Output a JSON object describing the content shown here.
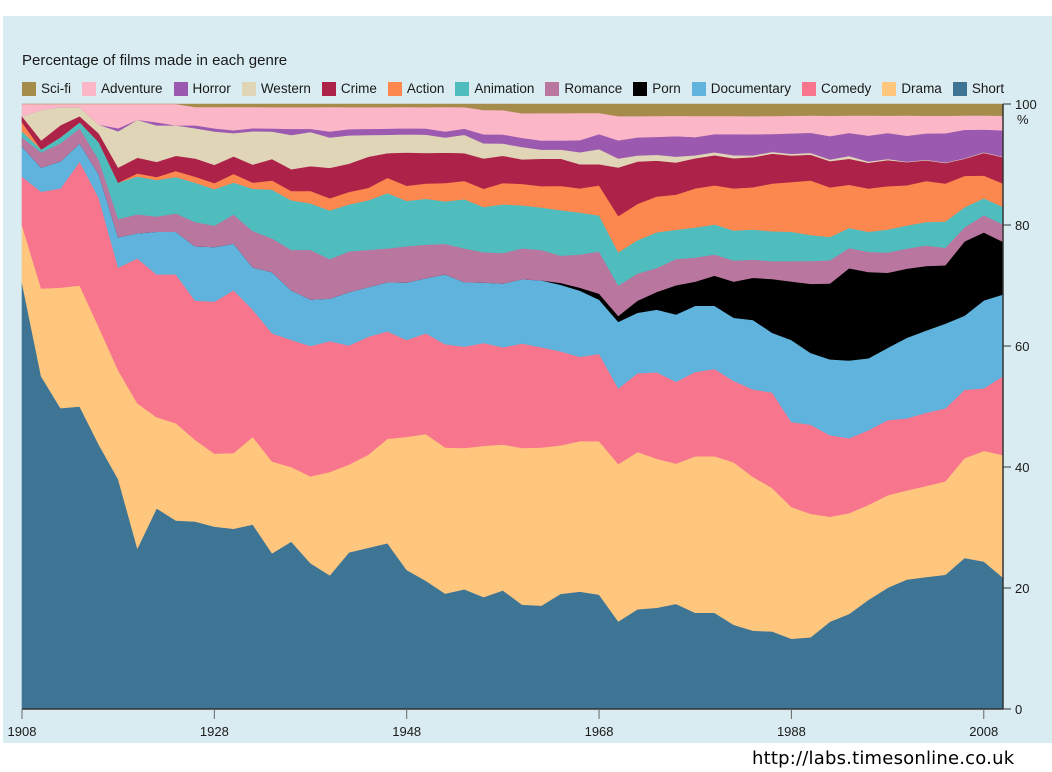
{
  "page": {
    "source_url": "http://labs.timesonline.co.uk"
  },
  "chart_data": {
    "type": "area",
    "stacked": true,
    "normalized_percent": true,
    "title": "Percentage of films made in each genre",
    "xlabel": "",
    "ylabel": "%",
    "xlim": [
      1908,
      2010
    ],
    "ylim": [
      0,
      100
    ],
    "x_ticks": [
      1908,
      1928,
      1948,
      1968,
      1988,
      2008
    ],
    "y_ticks": [
      0,
      20,
      40,
      60,
      80,
      100
    ],
    "y_tick_unit_label": "%",
    "grid": false,
    "legend_position": "top",
    "legend": [
      "Sci-fi",
      "Adventure",
      "Horror",
      "Western",
      "Crime",
      "Action",
      "Animation",
      "Romance",
      "Porn",
      "Documentary",
      "Comedy",
      "Drama",
      "Short"
    ],
    "stack_order_bottom_to_top": [
      "Short",
      "Drama",
      "Comedy",
      "Documentary",
      "Porn",
      "Romance",
      "Animation",
      "Action",
      "Crime",
      "Western",
      "Horror",
      "Adventure",
      "Sci-fi"
    ],
    "colors": {
      "Sci-fi": "#a58c4b",
      "Adventure": "#fbb7c8",
      "Horror": "#9b59b0",
      "Western": "#e0d5b7",
      "Crime": "#ad2249",
      "Action": "#fc874f",
      "Animation": "#4fbdbd",
      "Romance": "#b9769f",
      "Porn": "#000000",
      "Documentary": "#5fb3dc",
      "Comedy": "#f7768e",
      "Drama": "#ffc67e",
      "Short": "#3e7594"
    },
    "x": [
      1908,
      1910,
      1912,
      1914,
      1916,
      1918,
      1920,
      1922,
      1924,
      1926,
      1928,
      1930,
      1932,
      1934,
      1936,
      1938,
      1940,
      1942,
      1944,
      1946,
      1948,
      1950,
      1952,
      1954,
      1956,
      1958,
      1960,
      1962,
      1964,
      1966,
      1968,
      1970,
      1972,
      1974,
      1976,
      1978,
      1980,
      1982,
      1984,
      1986,
      1988,
      1990,
      1992,
      1994,
      1996,
      1998,
      2000,
      2002,
      2004,
      2006,
      2008,
      2010
    ],
    "series": [
      {
        "name": "Short",
        "values": [
          70.5,
          55,
          50,
          50,
          45,
          38,
          25.5,
          33,
          31,
          31,
          30,
          31,
          30.5,
          25.5,
          27,
          23.5,
          22,
          25,
          26,
          27,
          23,
          21,
          19,
          19.5,
          18.5,
          19.5,
          17,
          17,
          19,
          19.5,
          19,
          14.5,
          16.5,
          17,
          18,
          16,
          16,
          14,
          13,
          13,
          12,
          12.5,
          15,
          16.5,
          19,
          21,
          22.5,
          22.5,
          23,
          26.5,
          26,
          22.5
        ]
      },
      {
        "name": "Drama",
        "values": [
          9.5,
          14.5,
          20,
          20,
          20,
          18,
          23,
          15,
          16,
          13.5,
          12,
          13,
          14.5,
          15,
          12,
          14,
          17,
          14,
          15,
          17,
          22,
          24,
          24,
          23,
          25,
          24,
          25.5,
          26,
          24.5,
          25,
          25.5,
          26,
          26,
          25,
          24,
          26,
          26,
          27,
          25.5,
          24,
          22.5,
          21.5,
          18,
          17.5,
          16.5,
          16,
          15.5,
          15.5,
          16,
          17.5,
          19.5,
          21
        ]
      },
      {
        "name": "Comedy",
        "values": [
          8,
          16,
          16.5,
          20.5,
          22,
          17,
          23,
          23.5,
          24.5,
          23,
          25,
          28,
          21,
          21,
          20.5,
          21,
          21.5,
          19,
          19,
          17.5,
          16,
          16.5,
          17,
          16.5,
          17,
          16,
          17,
          16.5,
          15.5,
          14,
          14.5,
          12.5,
          13,
          14.5,
          14,
          14,
          14.5,
          13.5,
          14.5,
          16,
          14.5,
          15.5,
          14,
          13,
          13,
          13,
          12.5,
          12.5,
          12.5,
          12,
          11,
          13.5
        ]
      },
      {
        "name": "Documentary",
        "values": [
          5,
          4,
          4.5,
          3,
          4,
          5,
          4,
          7,
          7,
          9,
          9,
          8,
          7,
          10,
          8,
          7.5,
          7,
          8.5,
          8,
          8,
          9.5,
          9,
          11.5,
          10.5,
          10,
          10.5,
          10.5,
          11,
          11,
          11,
          9,
          11,
          10,
          10.5,
          11.5,
          11,
          10.5,
          10.5,
          11.5,
          10,
          14,
          12.5,
          13,
          13.5,
          12.5,
          12.5,
          14,
          14,
          14.5,
          13,
          15.5,
          14
        ]
      },
      {
        "name": "Porn",
        "values": [
          0,
          0,
          0,
          0,
          0,
          0,
          0,
          0,
          0,
          0,
          0,
          0,
          0,
          0,
          0,
          0,
          0,
          0,
          0,
          0,
          0,
          0,
          0,
          0,
          0,
          0,
          0,
          0,
          0.3,
          0.5,
          1,
          1,
          2,
          3,
          5,
          4,
          5,
          6,
          7,
          9,
          10,
          12,
          13,
          16,
          15,
          13,
          12,
          11,
          10,
          13,
          12,
          9
        ]
      },
      {
        "name": "Romance",
        "values": [
          1.5,
          2.5,
          3,
          2.5,
          2.5,
          3,
          3,
          2.5,
          3,
          4,
          3.5,
          5,
          6,
          5.5,
          6.5,
          8,
          6.5,
          6.5,
          6,
          5.5,
          6,
          5.5,
          5,
          5.5,
          5,
          5,
          5,
          5,
          4.5,
          5.5,
          7,
          5,
          4.5,
          4,
          4.5,
          4,
          3.5,
          3.5,
          3,
          3,
          3.5,
          4,
          4,
          3.5,
          3.5,
          3.5,
          3.5,
          3.5,
          3,
          2.5,
          3,
          3
        ]
      },
      {
        "name": "Animation",
        "values": [
          1,
          0.5,
          1,
          1,
          3,
          6,
          6,
          6,
          6,
          6.5,
          6,
          5.5,
          7,
          8,
          8,
          7.5,
          8,
          7.5,
          8,
          9,
          7.5,
          7.5,
          7,
          8,
          7.5,
          8,
          7,
          7,
          7.5,
          7,
          6,
          5.5,
          5.5,
          6,
          5,
          5,
          5,
          5,
          5,
          5,
          5,
          4.5,
          4,
          3.5,
          3.5,
          4,
          4,
          4,
          4.5,
          3.5,
          3,
          3
        ]
      },
      {
        "name": "Action",
        "values": [
          1.5,
          0,
          0,
          0,
          0,
          0,
          0.5,
          0.5,
          1,
          1,
          1,
          1.5,
          1,
          1.5,
          1.5,
          2,
          2,
          2,
          2,
          2.5,
          2.5,
          2.5,
          3,
          3,
          3,
          3.5,
          3.5,
          3.5,
          4,
          4,
          5,
          6,
          6,
          6,
          6,
          6.5,
          6.5,
          7,
          7,
          8,
          8.5,
          9.5,
          8.5,
          7.5,
          7.5,
          7.5,
          7,
          7,
          6.5,
          5.5,
          4,
          4
        ]
      },
      {
        "name": "Crime",
        "values": [
          1,
          1.5,
          2,
          1,
          1.5,
          2.5,
          2.5,
          2.5,
          2.5,
          3,
          3,
          3,
          3,
          3.5,
          3.5,
          4,
          5,
          4.5,
          5,
          4,
          5.5,
          5,
          5,
          4.5,
          5,
          4.5,
          4,
          4.5,
          4.5,
          4,
          3.5,
          8,
          7,
          6,
          5.5,
          5,
          5,
          5,
          5,
          5,
          4.5,
          4.5,
          4.5,
          4.5,
          4.5,
          4.5,
          4,
          3.5,
          3.5,
          3,
          4,
          4.5
        ]
      },
      {
        "name": "Western",
        "values": [
          0,
          5,
          3,
          1.5,
          1.5,
          6,
          6,
          6,
          5,
          5,
          5.5,
          4,
          5.5,
          4.5,
          5.5,
          5.5,
          5,
          4.5,
          3.5,
          3,
          3,
          3,
          2.5,
          3,
          2.5,
          2,
          2,
          1.5,
          1.5,
          2,
          2.5,
          1.5,
          1,
          1,
          1,
          0.5,
          0.5,
          0.5,
          0.3,
          0.3,
          0.3,
          0.3,
          0.3,
          0.5,
          0.2,
          0.2,
          0.1,
          0.1,
          0.1,
          0.1,
          0.1,
          0.1
        ]
      },
      {
        "name": "Horror",
        "values": [
          0,
          0,
          0,
          0,
          0,
          0.5,
          0,
          0.5,
          0,
          0.5,
          0.5,
          0.5,
          0.5,
          0.5,
          1,
          0.5,
          1,
          1,
          1,
          1,
          1,
          1,
          1,
          1,
          1.5,
          1.5,
          1.5,
          1.5,
          1.5,
          2,
          2.5,
          3,
          3,
          3,
          3.5,
          3,
          3,
          3.5,
          3.5,
          3,
          3.5,
          3.5,
          4,
          4,
          4.5,
          4.5,
          4.5,
          4.5,
          5,
          5,
          4,
          4.5
        ]
      },
      {
        "name": "Adventure",
        "values": [
          2,
          1,
          0.5,
          0.5,
          3.5,
          4,
          2.5,
          3,
          3.5,
          3,
          3.5,
          4,
          3.5,
          3.5,
          3.5,
          3.5,
          4,
          3.5,
          3.5,
          3.5,
          3.5,
          3.5,
          4,
          3.5,
          4,
          4,
          4,
          4.5,
          4.5,
          4.5,
          3.5,
          4,
          3.5,
          3.5,
          3.5,
          3.5,
          3,
          3,
          3,
          3,
          3,
          3,
          3.5,
          3,
          3.5,
          3,
          3.5,
          3,
          3,
          2.5,
          2.5,
          2.5
        ]
      },
      {
        "name": "Sci-fi",
        "values": [
          0,
          0,
          0,
          0,
          0,
          0,
          0,
          0,
          0,
          0.5,
          0.5,
          0.5,
          0.5,
          0.5,
          0.5,
          0.5,
          0.5,
          0.5,
          0.5,
          0.5,
          0.5,
          0.5,
          0.5,
          0.5,
          1,
          1,
          1.5,
          1.5,
          1.5,
          1.5,
          1.5,
          2,
          2,
          2,
          2,
          2,
          2,
          2,
          2,
          2,
          2,
          2,
          2,
          2,
          2,
          2,
          2,
          2,
          2,
          2,
          2,
          2
        ]
      }
    ]
  }
}
